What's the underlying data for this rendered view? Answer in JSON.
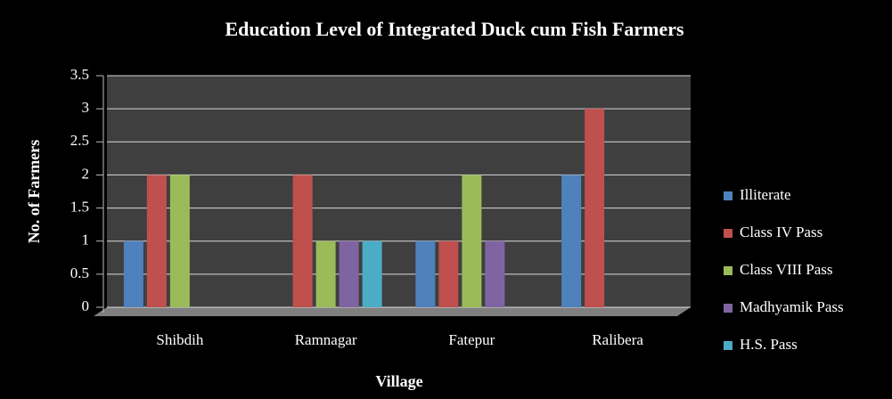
{
  "chart_data": {
    "type": "bar",
    "title": "Education Level of Integrated Duck cum Fish Farmers",
    "x_label": "Village",
    "y_label": "No. of Farmers",
    "categories": [
      "Shibdih",
      "Ramnagar",
      "Fatepur",
      "Ralibera"
    ],
    "series": [
      {
        "name": "Illiterate",
        "color": "#4f81bd",
        "values": [
          1,
          0,
          1,
          2
        ]
      },
      {
        "name": "Class IV Pass",
        "color": "#c0504d",
        "values": [
          2,
          2,
          1,
          3
        ]
      },
      {
        "name": "Class VIII Pass",
        "color": "#9bbb59",
        "values": [
          2,
          1,
          2,
          0
        ]
      },
      {
        "name": "Madhyamik Pass",
        "color": "#8064a2",
        "values": [
          0,
          1,
          1,
          0
        ]
      },
      {
        "name": "H.S. Pass",
        "color": "#4bacc6",
        "values": [
          0,
          1,
          0,
          0
        ]
      }
    ],
    "ylim": [
      0,
      3.5
    ],
    "yticks": [
      0,
      0.5,
      1,
      1.5,
      2,
      2.5,
      3,
      3.5
    ],
    "grid": true,
    "legend": "right"
  }
}
